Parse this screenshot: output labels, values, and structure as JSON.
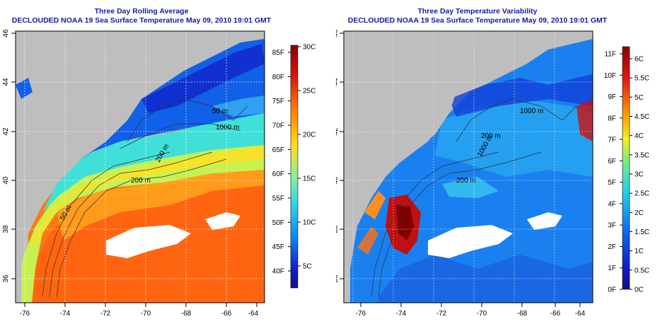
{
  "left_panel": {
    "title": "Three Day Rolling Average",
    "subtitle": "DECLOUDED NOAA 19 Sea Surface Temperature May 09, 2010 19:01 GMT",
    "contour_labels": [
      "50 m",
      "200 m",
      "1000 m",
      "200 m",
      "50 m"
    ],
    "colorbar_f": [
      "85F",
      "80F",
      "75F",
      "70F",
      "65F",
      "60F",
      "55F",
      "50F",
      "45F",
      "40F"
    ],
    "colorbar_c": [
      "30C",
      "25C",
      "20C",
      "15C",
      "10C",
      "5C"
    ]
  },
  "right_panel": {
    "title": "Three Day Temperature Variability",
    "subtitle": "DECLOUDED NOAA 19 Sea Surface Temperature May 09, 2010 19:01 GMT",
    "contour_labels": [
      "1000 m",
      "200 m",
      "200 m",
      "1000 m"
    ],
    "colorbar_f": [
      "11F",
      "10F",
      "9F",
      "8F",
      "7F",
      "6F",
      "5F",
      "4F",
      "3F",
      "2F",
      "1F",
      "0F"
    ],
    "colorbar_c": [
      "6C",
      "5.5C",
      "5C",
      "4.5C",
      "4C",
      "3.5C",
      "3C",
      "2.5C",
      "2C",
      "1.5C",
      "1C",
      "0.5C",
      "0C"
    ]
  },
  "axes": {
    "lon_ticks": [
      "-76",
      "-74",
      "-72",
      "-70",
      "-68",
      "-66",
      "-64"
    ],
    "lat_ticks": [
      "36",
      "38",
      "40",
      "42",
      "44",
      "46"
    ]
  },
  "colors": {
    "land": "#bebebe",
    "cloud": "#ffffff",
    "title": "#1a1aa8"
  }
}
